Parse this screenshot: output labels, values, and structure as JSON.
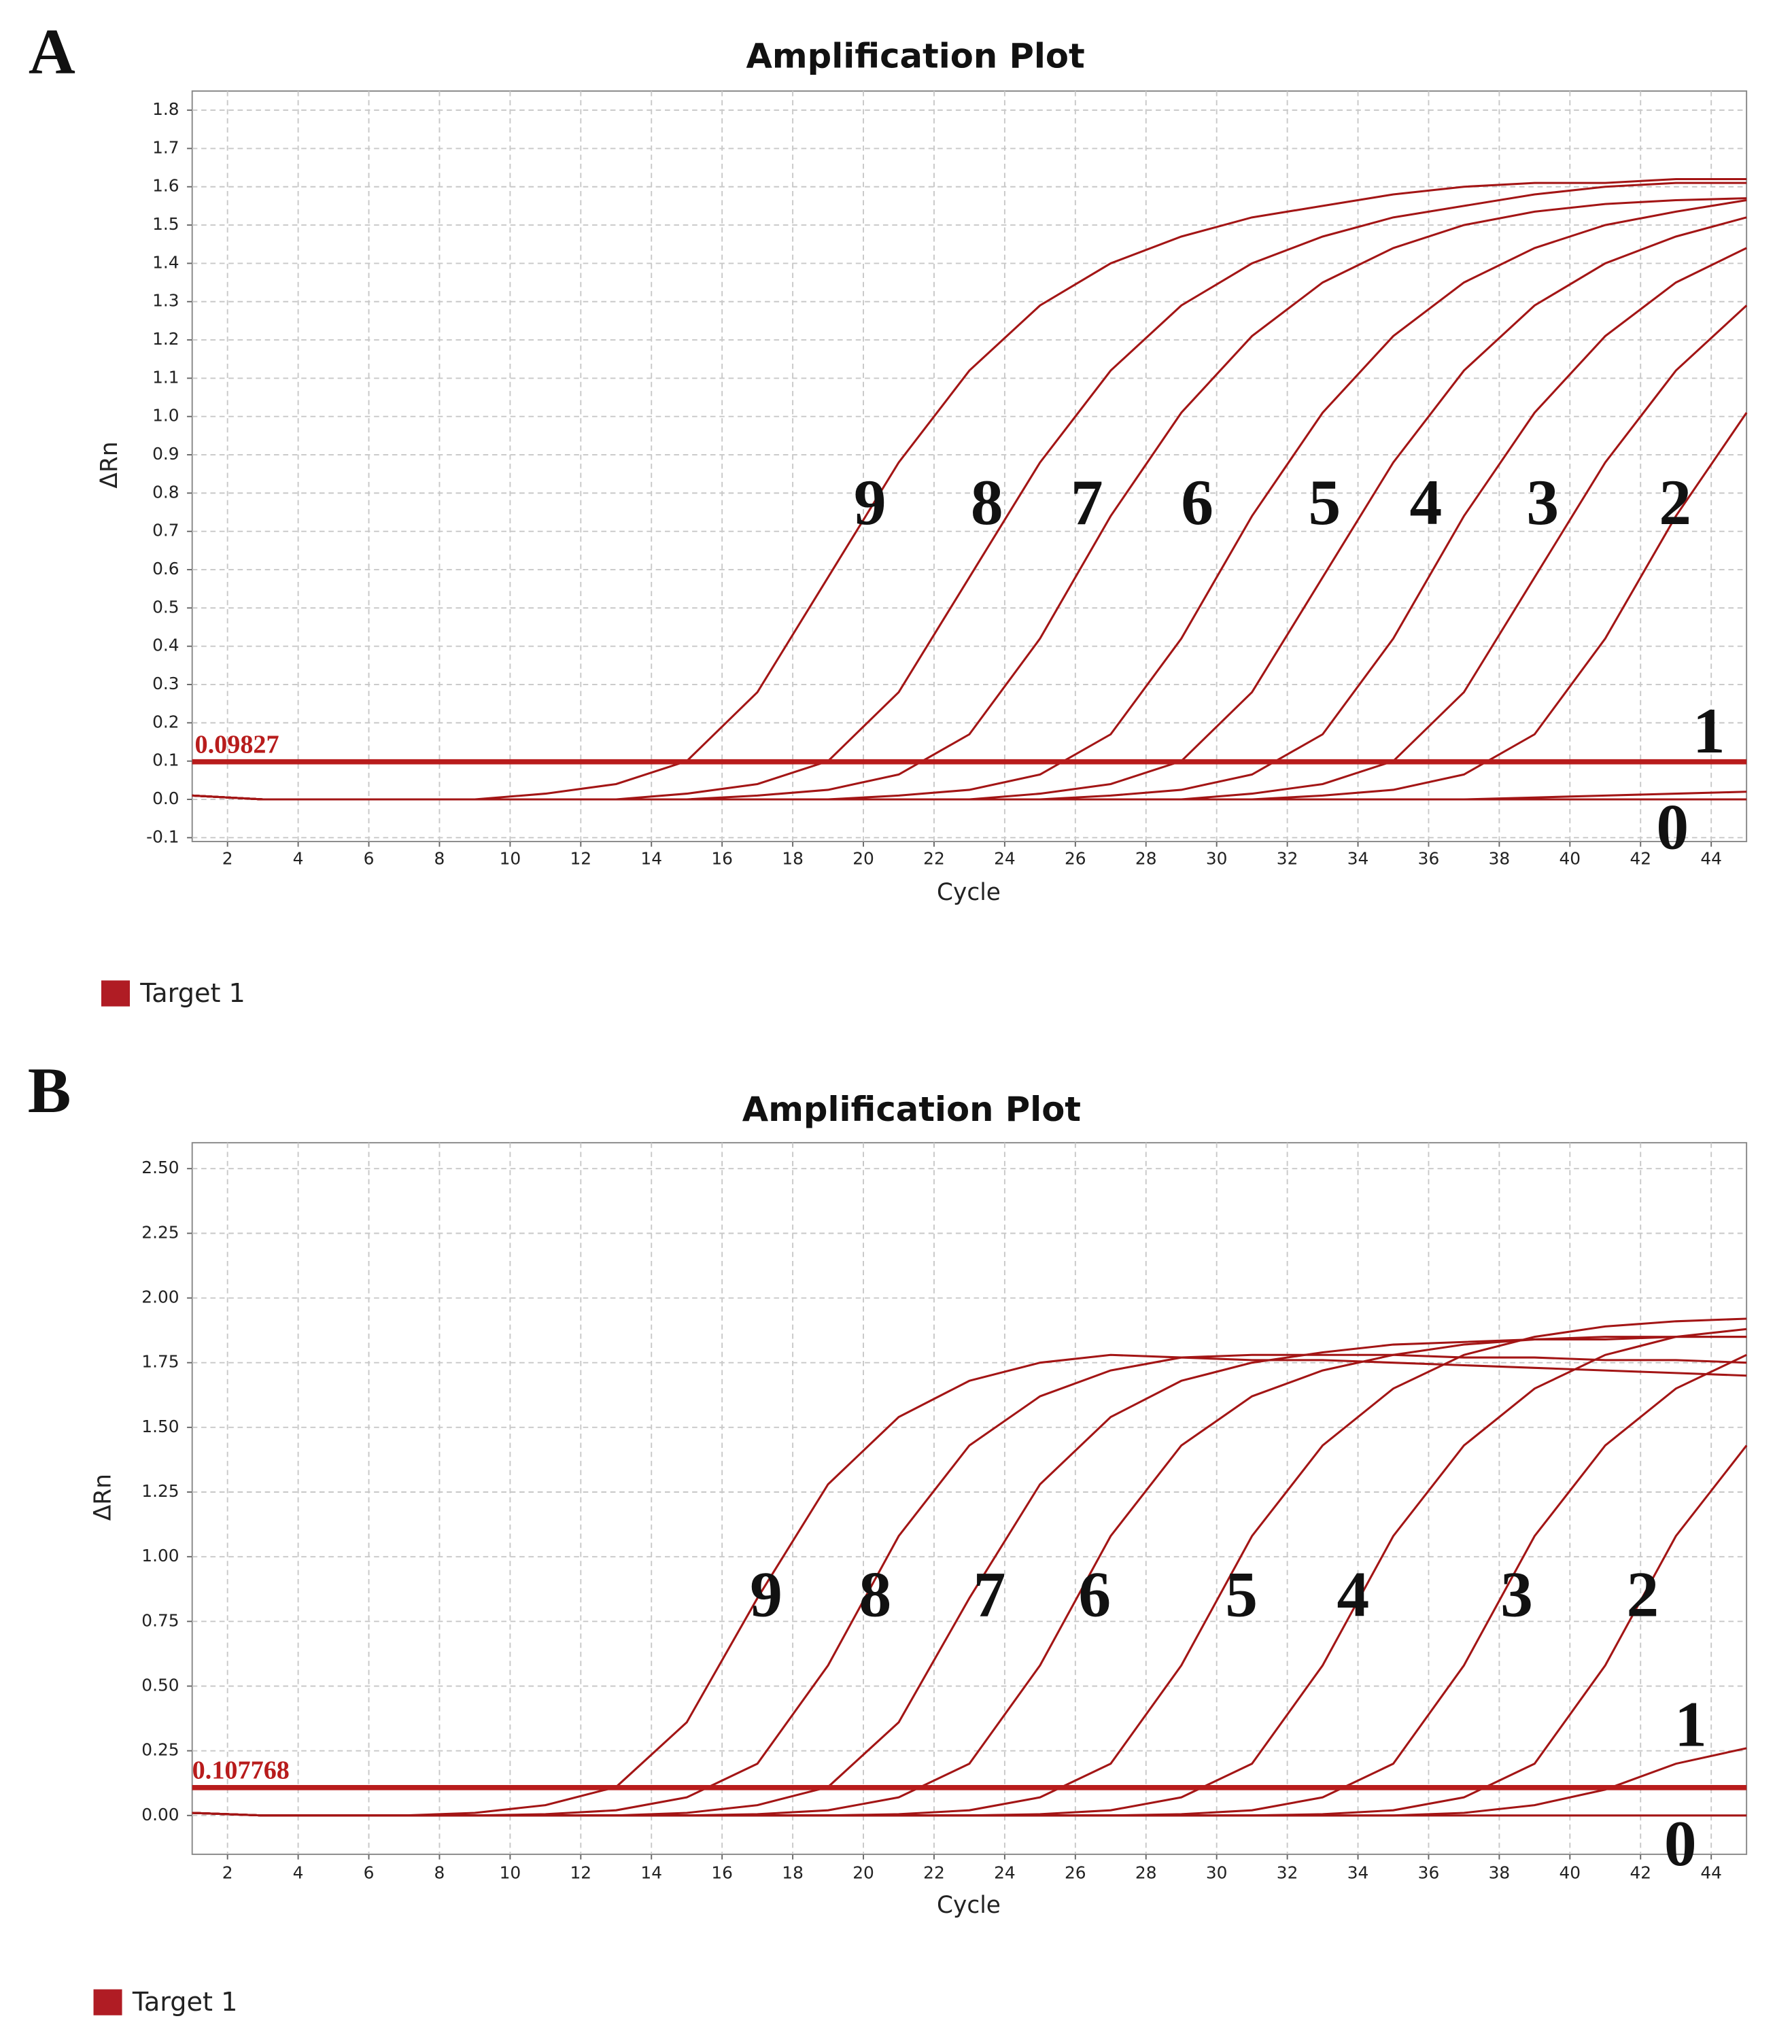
{
  "chart_data": [
    {
      "type": "line",
      "panel": "A",
      "title": "Amplification Plot",
      "x_label": "Cycle",
      "y_label": "ΔRn",
      "xlim": [
        1,
        45
      ],
      "ylim": [
        -0.11,
        1.85
      ],
      "xticks": [
        2,
        4,
        6,
        8,
        10,
        12,
        14,
        16,
        18,
        20,
        22,
        24,
        26,
        28,
        30,
        32,
        34,
        36,
        38,
        40,
        42,
        44
      ],
      "yticks": [
        -0.1,
        {
          "value": 0,
          "label": "0.0"
        },
        0.1,
        0.2,
        0.3,
        0.4,
        0.5,
        0.6,
        0.7,
        0.8,
        0.9,
        {
          "value": 1,
          "label": "1.0"
        },
        1.1,
        1.2,
        1.3,
        1.4,
        1.5,
        1.6,
        1.7,
        1.8
      ],
      "grid": true,
      "threshold": 0.09827,
      "threshold_color": "#b81c1c",
      "legend": [
        {
          "name": "Target 1",
          "color": "#b01c24"
        }
      ],
      "annotations": [
        "9",
        "8",
        "7",
        "6",
        "5",
        "4",
        "3",
        "2",
        "1",
        "0"
      ],
      "x": [
        1,
        3,
        5,
        7,
        9,
        11,
        13,
        15,
        17,
        19,
        21,
        23,
        25,
        27,
        29,
        31,
        33,
        35,
        37,
        39,
        41,
        43,
        45
      ],
      "series": [
        {
          "color": "#a31515",
          "values": [
            0.01,
            0,
            0,
            0,
            0,
            0.015,
            0.04,
            0.1,
            0.28,
            0.58,
            0.88,
            1.12,
            1.29,
            1.4,
            1.47,
            1.52,
            1.55,
            1.58,
            1.6,
            1.61,
            1.61,
            1.62,
            1.62
          ]
        },
        {
          "color": "#a31515",
          "values": [
            0.01,
            0,
            0,
            0,
            0,
            0,
            0,
            0.015,
            0.04,
            0.1,
            0.28,
            0.58,
            0.88,
            1.12,
            1.29,
            1.4,
            1.47,
            1.52,
            1.55,
            1.58,
            1.6,
            1.61,
            1.61
          ]
        },
        {
          "color": "#a31515",
          "values": [
            0.01,
            0,
            0,
            0,
            0,
            0,
            0,
            0,
            0.01,
            0.025,
            0.065,
            0.17,
            0.42,
            0.74,
            1.01,
            1.21,
            1.35,
            1.44,
            1.5,
            1.535,
            1.555,
            1.565,
            1.57
          ]
        },
        {
          "color": "#a31515",
          "values": [
            0.01,
            0,
            0,
            0,
            0,
            0,
            0,
            0,
            0,
            0,
            0.01,
            0.025,
            0.065,
            0.17,
            0.42,
            0.74,
            1.01,
            1.21,
            1.35,
            1.44,
            1.5,
            1.535,
            1.565
          ]
        },
        {
          "color": "#a31515",
          "values": [
            0.01,
            0,
            0,
            0,
            0,
            0,
            0,
            0,
            0,
            0,
            0,
            0,
            0.015,
            0.04,
            0.1,
            0.28,
            0.58,
            0.88,
            1.12,
            1.29,
            1.4,
            1.47,
            1.52
          ]
        },
        {
          "color": "#a31515",
          "values": [
            0.01,
            0,
            0,
            0,
            0,
            0,
            0,
            0,
            0,
            0,
            0,
            0,
            0,
            0.01,
            0.025,
            0.065,
            0.17,
            0.42,
            0.74,
            1.01,
            1.21,
            1.35,
            1.44
          ]
        },
        {
          "color": "#a31515",
          "values": [
            0.01,
            0,
            0,
            0,
            0,
            0,
            0,
            0,
            0,
            0,
            0,
            0,
            0,
            0,
            0,
            0.015,
            0.04,
            0.1,
            0.28,
            0.58,
            0.88,
            1.12,
            1.29
          ]
        },
        {
          "color": "#a31515",
          "values": [
            0.01,
            0,
            0,
            0,
            0,
            0,
            0,
            0,
            0,
            0,
            0,
            0,
            0,
            0,
            0,
            0,
            0.01,
            0.025,
            0.065,
            0.17,
            0.42,
            0.74,
            1.01
          ]
        },
        {
          "color": "#a31515",
          "values": [
            0.01,
            0,
            0,
            0,
            0,
            0,
            0,
            0,
            0,
            0,
            0,
            0,
            0,
            0,
            0,
            0,
            0,
            0,
            0,
            0.005,
            0.01,
            0.015,
            0.02
          ]
        },
        {
          "color": "#a31515",
          "values": [
            0.01,
            0,
            0,
            0,
            0,
            0,
            0,
            0,
            0,
            0,
            0,
            0,
            0,
            0,
            0,
            0,
            0,
            0,
            0,
            0,
            0,
            0,
            0
          ]
        }
      ]
    },
    {
      "type": "line",
      "panel": "B",
      "title": "Amplification Plot",
      "x_label": "Cycle",
      "y_label": "ΔRn",
      "xlim": [
        1,
        45
      ],
      "ylim": [
        -0.15,
        2.6
      ],
      "xticks": [
        2,
        4,
        6,
        8,
        10,
        12,
        14,
        16,
        18,
        20,
        22,
        24,
        26,
        28,
        30,
        32,
        34,
        36,
        38,
        40,
        42,
        44
      ],
      "yticks": [
        {
          "value": 0,
          "label": "0.00"
        },
        0.25,
        {
          "value": 0.5,
          "label": "0.50"
        },
        0.75,
        {
          "value": 1,
          "label": "1.00"
        },
        1.25,
        {
          "value": 1.5,
          "label": "1.50"
        },
        1.75,
        {
          "value": 2,
          "label": "2.00"
        },
        2.25,
        {
          "value": 2.5,
          "label": "2.50"
        }
      ],
      "grid": true,
      "threshold": 0.107768,
      "threshold_color": "#b81c1c",
      "legend": [
        {
          "name": "Target 1",
          "color": "#b01c24"
        }
      ],
      "annotations": [
        "9",
        "8",
        "7",
        "6",
        "5",
        "4",
        "3",
        "2",
        "1",
        "0"
      ],
      "x": [
        1,
        3,
        5,
        7,
        9,
        11,
        13,
        15,
        17,
        19,
        21,
        23,
        25,
        27,
        29,
        31,
        33,
        35,
        37,
        39,
        41,
        43,
        45
      ],
      "series": [
        {
          "color": "#a31515",
          "values": [
            0.01,
            0,
            0,
            0,
            0.01,
            0.04,
            0.11,
            0.36,
            0.84,
            1.28,
            1.54,
            1.68,
            1.75,
            1.78,
            1.77,
            1.76,
            1.76,
            1.75,
            1.74,
            1.73,
            1.72,
            1.71,
            1.7
          ]
        },
        {
          "color": "#a31515",
          "values": [
            0.01,
            0,
            0,
            0,
            0,
            0.005,
            0.02,
            0.07,
            0.2,
            0.58,
            1.08,
            1.43,
            1.62,
            1.72,
            1.77,
            1.78,
            1.78,
            1.78,
            1.77,
            1.77,
            1.76,
            1.76,
            1.75
          ]
        },
        {
          "color": "#a31515",
          "values": [
            0.01,
            0,
            0,
            0,
            0,
            0,
            0,
            0.01,
            0.04,
            0.11,
            0.36,
            0.84,
            1.28,
            1.54,
            1.68,
            1.75,
            1.79,
            1.82,
            1.83,
            1.84,
            1.84,
            1.85,
            1.85
          ]
        },
        {
          "color": "#a31515",
          "values": [
            0.01,
            0,
            0,
            0,
            0,
            0,
            0,
            0,
            0.005,
            0.02,
            0.07,
            0.2,
            0.58,
            1.08,
            1.43,
            1.62,
            1.72,
            1.78,
            1.82,
            1.84,
            1.85,
            1.85,
            1.85
          ]
        },
        {
          "color": "#a31515",
          "values": [
            0.01,
            0,
            0,
            0,
            0,
            0,
            0,
            0,
            0,
            0,
            0.005,
            0.02,
            0.07,
            0.2,
            0.58,
            1.08,
            1.43,
            1.65,
            1.78,
            1.85,
            1.89,
            1.91,
            1.92
          ]
        },
        {
          "color": "#a31515",
          "values": [
            0.01,
            0,
            0,
            0,
            0,
            0,
            0,
            0,
            0,
            0,
            0,
            0,
            0.005,
            0.02,
            0.07,
            0.2,
            0.58,
            1.08,
            1.43,
            1.65,
            1.78,
            1.85,
            1.88
          ]
        },
        {
          "color": "#a31515",
          "values": [
            0.01,
            0,
            0,
            0,
            0,
            0,
            0,
            0,
            0,
            0,
            0,
            0,
            0,
            0,
            0.005,
            0.02,
            0.07,
            0.2,
            0.58,
            1.08,
            1.43,
            1.65,
            1.78
          ]
        },
        {
          "color": "#a31515",
          "values": [
            0.01,
            0,
            0,
            0,
            0,
            0,
            0,
            0,
            0,
            0,
            0,
            0,
            0,
            0,
            0,
            0,
            0.005,
            0.02,
            0.07,
            0.2,
            0.58,
            1.08,
            1.43
          ]
        },
        {
          "color": "#a31515",
          "values": [
            0.01,
            0,
            0,
            0,
            0,
            0,
            0,
            0,
            0,
            0,
            0,
            0,
            0,
            0,
            0,
            0,
            0,
            0,
            0.01,
            0.04,
            0.1,
            0.2,
            0.26
          ]
        },
        {
          "color": "#a31515",
          "values": [
            0.01,
            0,
            0,
            0,
            0,
            0,
            0,
            0,
            0,
            0,
            0,
            0,
            0,
            0,
            0,
            0,
            0,
            0,
            0,
            0,
            0,
            0,
            0
          ]
        }
      ]
    }
  ]
}
